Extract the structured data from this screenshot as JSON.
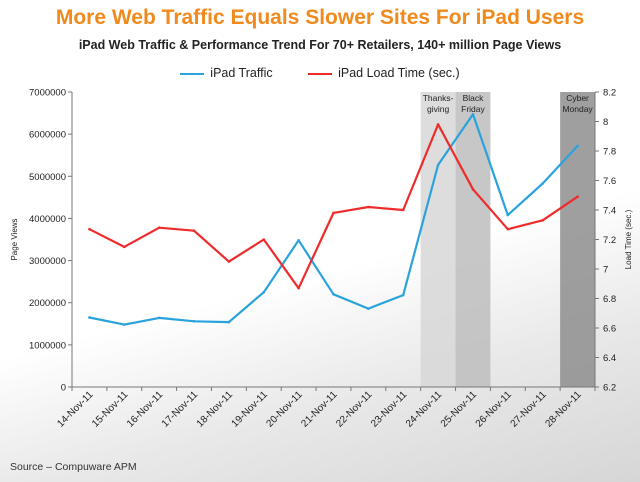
{
  "slide": {
    "title": "More Web Traffic Equals Slower Sites For iPad Users",
    "subtitle": "iPad Web Traffic & Performance Trend For 70+ Retailers, 140+ million Page Views",
    "source": "Source – Compuware APM"
  },
  "colors": {
    "traffic": "#2aa3dc",
    "load": "#ef2b2b",
    "band_light": "#d7d7d7",
    "band_mid": "#bdbdbd",
    "band_dark": "#8e8e8e",
    "title": "#f08a1c"
  },
  "chart_data": {
    "type": "line",
    "title": "More Web Traffic Equals Slower Sites For iPad Users",
    "subtitle": "iPad Web Traffic & Performance Trend For 70+ Retailers, 140+ million Page Views",
    "categories": [
      "14-Nov-11",
      "15-Nov-11",
      "16-Nov-11",
      "17-Nov-11",
      "18-Nov-11",
      "19-Nov-11",
      "20-Nov-11",
      "21-Nov-11",
      "22-Nov-11",
      "23-Nov-11",
      "24-Nov-11",
      "25-Nov-11",
      "26-Nov-11",
      "27-Nov-11",
      "28-Nov-11"
    ],
    "series": [
      {
        "name": "iPad Traffic",
        "axis": "left",
        "values": [
          1650000,
          1480000,
          1640000,
          1560000,
          1540000,
          2250000,
          3480000,
          2200000,
          1860000,
          2180000,
          5270000,
          6470000,
          4080000,
          4830000,
          5720000
        ]
      },
      {
        "name": "iPad Load Time (sec.)",
        "axis": "right",
        "values": [
          7.27,
          7.15,
          7.28,
          7.26,
          7.05,
          7.2,
          6.87,
          7.38,
          7.42,
          7.4,
          7.98,
          7.54,
          7.27,
          7.33,
          7.49
        ]
      }
    ],
    "ylabel": "Page Views",
    "ylabel_right": "Load Time (sec.)",
    "ylim": [
      0,
      7000000
    ],
    "ylim_right": [
      6.2,
      8.2
    ],
    "yticks": [
      "0",
      "1000000",
      "2000000",
      "3000000",
      "4000000",
      "5000000",
      "6000000",
      "7000000"
    ],
    "yticks_right": [
      "6.2",
      "6.4",
      "6.6",
      "6.8",
      "7",
      "7.2",
      "7.4",
      "7.6",
      "7.8",
      "8",
      "8.2"
    ],
    "annotations": [
      {
        "category": "24-Nov-11",
        "lines": [
          "Thanks-",
          "giving"
        ],
        "shade": "light"
      },
      {
        "category": "25-Nov-11",
        "lines": [
          "Black",
          "Friday"
        ],
        "shade": "mid"
      },
      {
        "category": "28-Nov-11",
        "lines": [
          "Cyber",
          "Monday"
        ],
        "shade": "dark"
      }
    ],
    "legend": "top-center",
    "grid": false
  }
}
